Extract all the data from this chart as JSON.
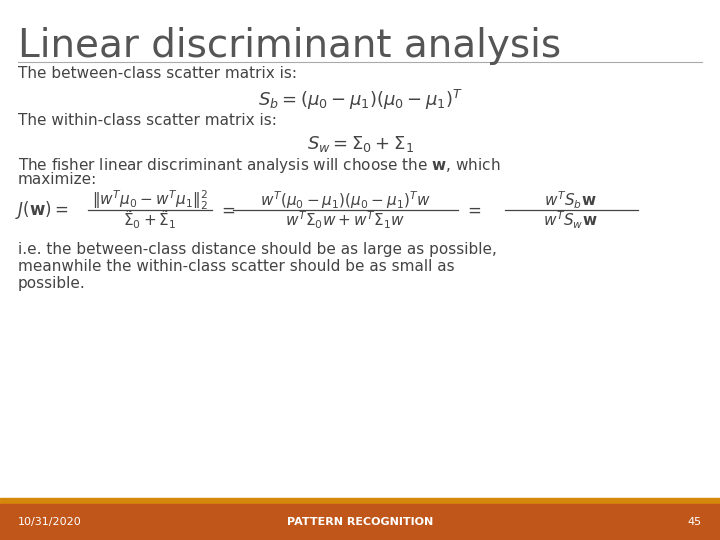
{
  "title": "Linear discriminant analysis",
  "title_fontsize": 28,
  "title_color": "#555555",
  "bg_color": "#ffffff",
  "footer_bg_color": "#C0561A",
  "footer_top_color": "#D4870A",
  "footer_date": "10/31/2020",
  "footer_center": "PATTERN RECOGNITION",
  "footer_page": "45",
  "footer_text_color": "#ffffff",
  "footer_fontsize": 8,
  "line_color": "#aaaaaa",
  "text_color": "#444444",
  "body_fontsize": 11,
  "math_fontsize": 13,
  "small_math_fontsize": 11
}
